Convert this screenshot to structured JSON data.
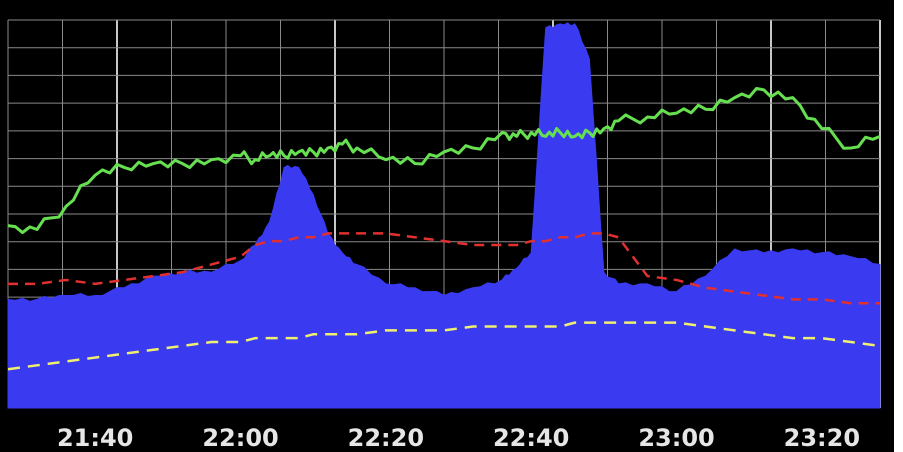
{
  "chart_data": {
    "type": "area",
    "title": "",
    "xlabel": "",
    "ylabel": "",
    "x_tick_labels": [
      "21:40",
      "22:00",
      "22:20",
      "22:40",
      "23:00",
      "23:20"
    ],
    "x_range": [
      "21:28",
      "23:28"
    ],
    "y_range": [
      0,
      100
    ],
    "grid": true,
    "legend": "none",
    "colors": {
      "background": "#000000",
      "grid": "#8a8a8a",
      "area": "#3a3af0",
      "green": "#66e050",
      "red": "#e03030",
      "yellow": "#f0f070",
      "tick_text": "#e6e6e6"
    },
    "x": [
      "21:28",
      "21:32",
      "21:36",
      "21:40",
      "21:44",
      "21:48",
      "21:52",
      "21:56",
      "22:00",
      "22:02",
      "22:04",
      "22:06",
      "22:08",
      "22:10",
      "22:12",
      "22:14",
      "22:16",
      "22:20",
      "22:24",
      "22:28",
      "22:32",
      "22:36",
      "22:38",
      "22:40",
      "22:42",
      "22:44",
      "22:46",
      "22:48",
      "22:50",
      "22:52",
      "22:56",
      "23:00",
      "23:04",
      "23:08",
      "23:12",
      "23:16",
      "23:20",
      "23:24",
      "23:28"
    ],
    "series": [
      {
        "style": "filled-area",
        "values": [
          28,
          28,
          29,
          29,
          31,
          34,
          35,
          35,
          38,
          42,
          48,
          62,
          62,
          55,
          45,
          40,
          37,
          32,
          31,
          29,
          31,
          33,
          36,
          40,
          98,
          99,
          99,
          90,
          35,
          32,
          32,
          30,
          34,
          41,
          40,
          41,
          40,
          39,
          37
        ]
      },
      {
        "style": "solid-line",
        "values": [
          47,
          46,
          52,
          60,
          62,
          63,
          63,
          64,
          65,
          64,
          65,
          65,
          66,
          66,
          67,
          68,
          67,
          64,
          63,
          66,
          67,
          71,
          70,
          71,
          70,
          71,
          70,
          71,
          72,
          74,
          75,
          76,
          77,
          80,
          82,
          80,
          72,
          67,
          70
        ]
      },
      {
        "style": "dashed-line",
        "values": [
          32,
          32,
          33,
          32,
          33,
          34,
          35,
          37,
          39,
          42,
          43,
          43,
          44,
          44,
          45,
          45,
          45,
          45,
          44,
          43,
          42,
          42,
          42,
          43,
          43,
          44,
          44,
          45,
          45,
          44,
          34,
          33,
          31,
          30,
          29,
          28,
          28,
          27,
          27
        ]
      },
      {
        "style": "dashed-line",
        "values": [
          10,
          11,
          12,
          13,
          14,
          15,
          16,
          17,
          17,
          18,
          18,
          18,
          18,
          19,
          19,
          19,
          19,
          20,
          20,
          20,
          21,
          21,
          21,
          21,
          21,
          21,
          22,
          22,
          22,
          22,
          22,
          22,
          21,
          20,
          19,
          18,
          18,
          17,
          16
        ]
      }
    ]
  }
}
